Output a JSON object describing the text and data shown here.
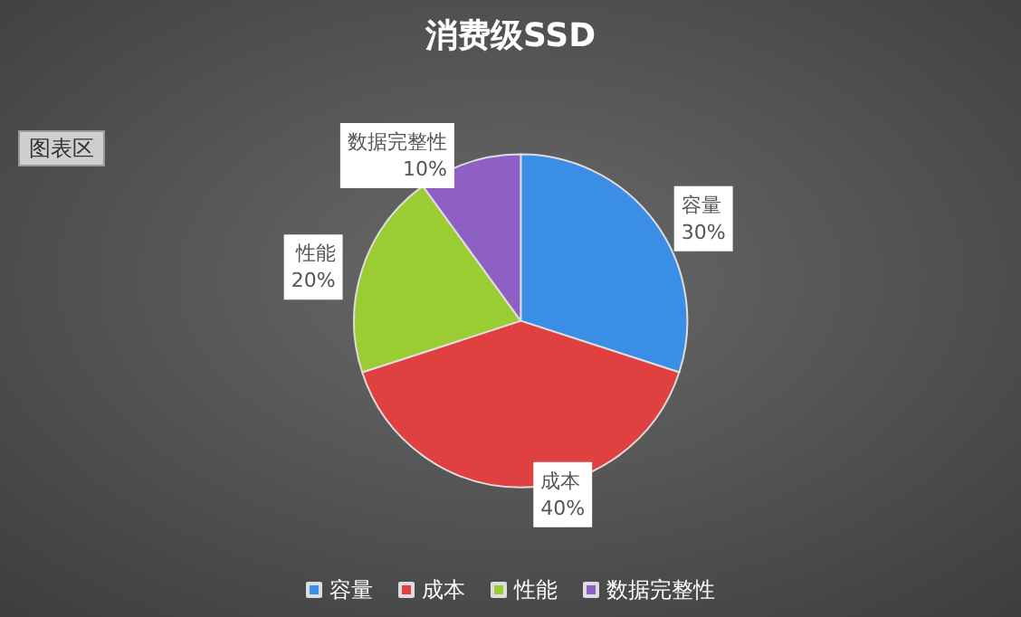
{
  "chart_data": {
    "type": "pie",
    "title": "消费级SSD",
    "categories": [
      "容量",
      "成本",
      "性能",
      "数据完整性"
    ],
    "values": [
      30,
      40,
      20,
      10
    ],
    "colors": [
      "#3a8ee6",
      "#e04040",
      "#9acd32",
      "#8e5fc4"
    ],
    "value_labels": [
      "30%",
      "40%",
      "20%",
      "10%"
    ],
    "legend": "bottom",
    "annotations": [
      "图表区"
    ]
  }
}
